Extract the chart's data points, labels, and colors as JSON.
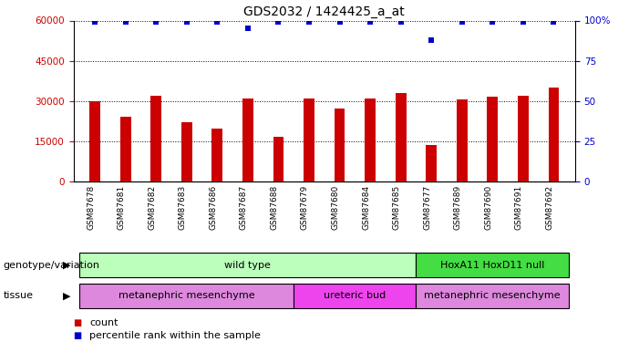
{
  "title": "GDS2032 / 1424425_a_at",
  "samples": [
    "GSM87678",
    "GSM87681",
    "GSM87682",
    "GSM87683",
    "GSM87686",
    "GSM87687",
    "GSM87688",
    "GSM87679",
    "GSM87680",
    "GSM87684",
    "GSM87685",
    "GSM87677",
    "GSM87689",
    "GSM87690",
    "GSM87691",
    "GSM87692"
  ],
  "bar_heights": [
    30000,
    24000,
    32000,
    22000,
    19500,
    31000,
    16500,
    31000,
    27000,
    31000,
    33000,
    13500,
    30500,
    31500,
    32000,
    35000
  ],
  "percentile_vals_pct": [
    99,
    99,
    99,
    99,
    99,
    95,
    99,
    99,
    99,
    99,
    99,
    88,
    99,
    99,
    99,
    99
  ],
  "ylim_left": [
    0,
    60000
  ],
  "ylim_right": [
    0,
    100
  ],
  "yticks_left": [
    0,
    15000,
    30000,
    45000,
    60000
  ],
  "yticks_right": [
    0,
    25,
    50,
    75,
    100
  ],
  "bar_color": "#cc0000",
  "dot_color": "#0000cc",
  "background_color": "#ffffff",
  "left_label_color": "#cc0000",
  "right_label_color": "#0000cc",
  "genotype_groups": [
    {
      "label": "wild type",
      "start": 0,
      "end": 11,
      "color": "#bbffbb"
    },
    {
      "label": "HoxA11 HoxD11 null",
      "start": 11,
      "end": 16,
      "color": "#44dd44"
    }
  ],
  "tissue_groups": [
    {
      "label": "metanephric mesenchyme",
      "start": 0,
      "end": 7,
      "color": "#dd88dd"
    },
    {
      "label": "ureteric bud",
      "start": 7,
      "end": 11,
      "color": "#ee44ee"
    },
    {
      "label": "metanephric mesenchyme",
      "start": 11,
      "end": 16,
      "color": "#dd88dd"
    }
  ],
  "genotype_label": "genotype/variation",
  "tissue_label": "tissue",
  "legend_count_label": "count",
  "legend_pct_label": "percentile rank within the sample",
  "title_fontsize": 10,
  "tick_fontsize": 7.5,
  "annotation_fontsize": 8,
  "bar_width": 0.35
}
